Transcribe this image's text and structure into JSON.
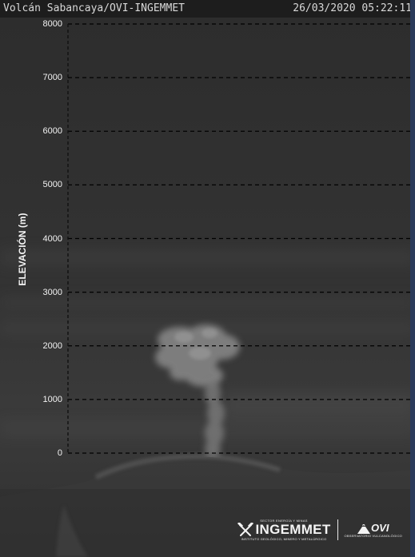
{
  "camera": {
    "title": "Volcán Sabancaya/OVI-INGEMMET",
    "timestamp": "26/03/2020 05:22:11"
  },
  "elevation_scale": {
    "axis_title": "ELEVACIÓN (m)",
    "unit": "m",
    "min": 0,
    "max": 8000,
    "ticks": [
      {
        "label": "8000",
        "value": 8000
      },
      {
        "label": "7000",
        "value": 7000
      },
      {
        "label": "6000",
        "value": 6000
      },
      {
        "label": "5000",
        "value": 5000
      },
      {
        "label": "4000",
        "value": 4000
      },
      {
        "label": "3000",
        "value": 3000
      },
      {
        "label": "2000",
        "value": 2000
      },
      {
        "label": "1000",
        "value": 1000
      },
      {
        "label": "0",
        "value": 0
      }
    ],
    "gridline_color": "#000000",
    "tick_label_color": "#f2f2f2"
  },
  "logos": {
    "ingemmet_tagline": "SECTOR ENERGÍA Y MINAS",
    "ingemmet_name": "INGEMMET",
    "ingemmet_subtitle": "INSTITUTO GEOLÓGICO, MINERO Y METALÚRGICO",
    "ovi_name": "OVI",
    "ovi_subtitle": "OBSERVATORIO VULCANOLÓGICO",
    "ingemmet_icon": "crossed-hammers-icon",
    "ovi_icon": "volcano-icon"
  },
  "colors": {
    "header_background": "#1d1d1d",
    "header_text": "#d8d8d8",
    "frame_edge": "#2a3a5a"
  }
}
